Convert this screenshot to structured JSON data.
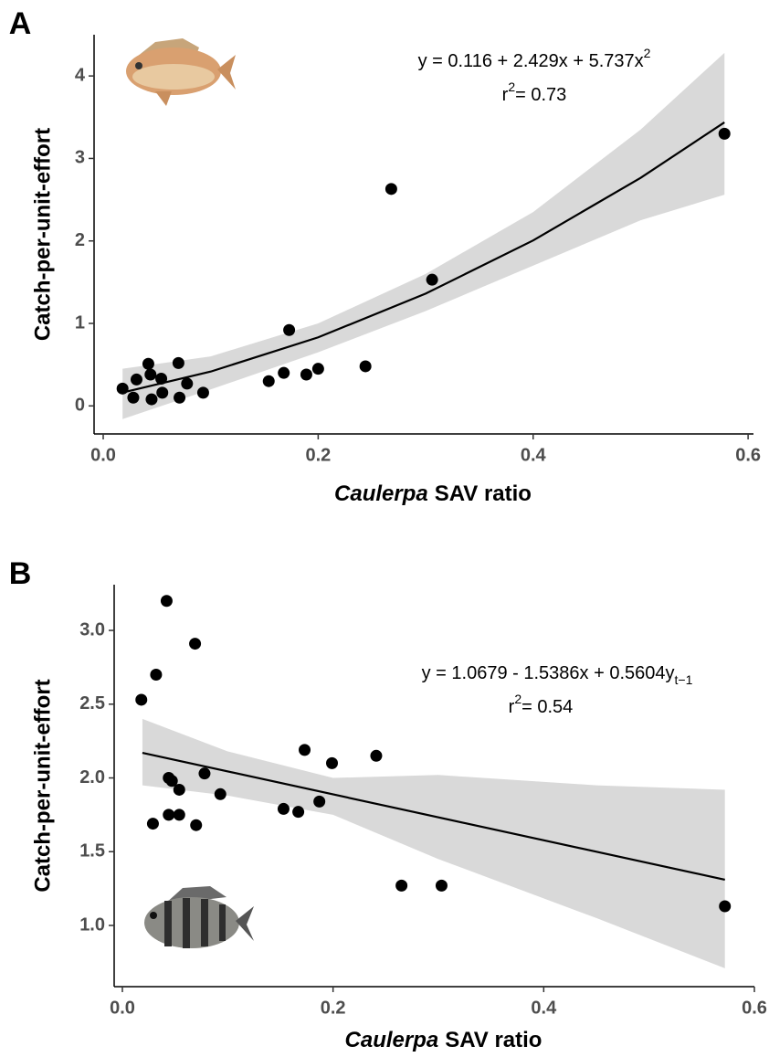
{
  "chart_data": [
    {
      "type": "scatter",
      "panel_label": "A",
      "xlabel_italic": "Caulerpa",
      "xlabel": "SAV ratio",
      "ylabel": "Catch-per-unit-effort",
      "equation": "y = 0.116 + 2.429x + 5.737x",
      "equation_sup": "2",
      "r2_label": "r",
      "r2_sup": "2",
      "r2_value": "= 0.73",
      "color": "#000000",
      "x": [
        0.018,
        0.028,
        0.031,
        0.042,
        0.044,
        0.045,
        0.054,
        0.055,
        0.07,
        0.071,
        0.078,
        0.093,
        0.154,
        0.168,
        0.173,
        0.189,
        0.2,
        0.244,
        0.268,
        0.306,
        0.578
      ],
      "y": [
        0.21,
        0.1,
        0.32,
        0.51,
        0.38,
        0.08,
        0.33,
        0.16,
        0.52,
        0.1,
        0.27,
        0.16,
        0.3,
        0.4,
        0.92,
        0.38,
        0.45,
        0.48,
        2.63,
        1.53,
        3.3
      ],
      "fit": {
        "color": "#000000",
        "x": [
          0.018,
          0.1,
          0.2,
          0.3,
          0.4,
          0.5,
          0.578
        ],
        "y": [
          0.162,
          0.416,
          0.831,
          1.361,
          2.006,
          2.765,
          3.437
        ]
      },
      "band": {
        "color": "#d9d9d9",
        "x": [
          0.018,
          0.1,
          0.2,
          0.3,
          0.4,
          0.5,
          0.578
        ],
        "lower": [
          -0.16,
          0.2,
          0.65,
          1.15,
          1.7,
          2.25,
          2.56
        ],
        "upper": [
          0.45,
          0.6,
          1.0,
          1.6,
          2.35,
          3.35,
          4.28
        ]
      },
      "xlim": [
        -0.0085,
        0.605
      ],
      "ylim": [
        -0.34,
        4.5
      ],
      "xticks": [
        {
          "value": 0,
          "label": "0.0"
        },
        0.2,
        0.4,
        0.6
      ],
      "yticks": [
        0,
        1,
        2,
        3,
        4
      ]
    },
    {
      "type": "scatter",
      "panel_label": "B",
      "xlabel_italic": "Caulerpa",
      "xlabel": "SAV ratio",
      "ylabel": "Catch-per-unit-effort",
      "equation": "y = 1.0679 - 1.5386x + 0.5604y",
      "equation_sub": "t−1",
      "r2_label": "r",
      "r2_sup": "2",
      "r2_value": "= 0.54",
      "color": "#000000",
      "x": [
        0.018,
        0.029,
        0.032,
        0.042,
        0.044,
        0.044,
        0.047,
        0.054,
        0.054,
        0.069,
        0.07,
        0.078,
        0.093,
        0.153,
        0.167,
        0.173,
        0.187,
        0.199,
        0.241,
        0.265,
        0.303,
        0.572
      ],
      "y": [
        2.53,
        1.69,
        2.7,
        3.2,
        2.0,
        1.75,
        1.98,
        1.92,
        1.75,
        2.91,
        1.68,
        2.03,
        1.89,
        1.79,
        1.77,
        2.19,
        1.84,
        2.1,
        2.15,
        1.27,
        1.27,
        1.13
      ],
      "fit": {
        "color": "#000000",
        "x": [
          0.019,
          0.572
        ],
        "y": [
          2.17,
          1.31
        ]
      },
      "band": {
        "color": "#d9d9d9",
        "x": [
          0.019,
          0.1,
          0.2,
          0.3,
          0.45,
          0.572
        ],
        "lower": [
          1.95,
          1.88,
          1.75,
          1.45,
          1.05,
          0.71
        ],
        "upper": [
          2.4,
          2.18,
          2.0,
          2.02,
          1.95,
          1.92
        ]
      },
      "xlim": [
        -0.0078,
        0.6
      ],
      "ylim": [
        0.585,
        3.31
      ],
      "xticks": [
        {
          "value": 0,
          "label": "0.0"
        },
        0.2,
        0.4,
        0.6
      ],
      "yticks": [
        {
          "value": 1,
          "label": "1.0"
        },
        1.5,
        {
          "value": 2,
          "label": "2.0"
        },
        2.5,
        {
          "value": 3,
          "label": "3.0"
        }
      ]
    }
  ]
}
